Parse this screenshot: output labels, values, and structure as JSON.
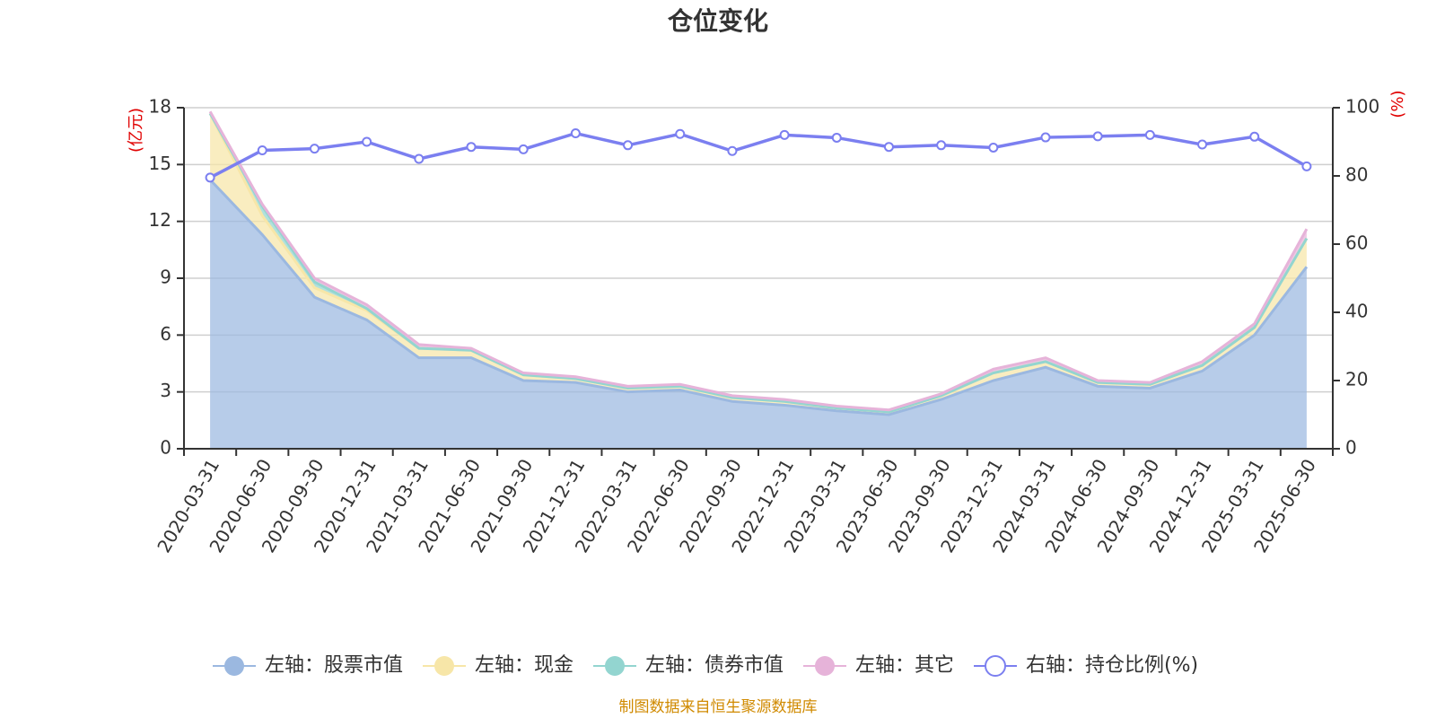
{
  "chart_data": {
    "type": "area",
    "title": "仓位变化",
    "categories": [
      "2020-03-31",
      "2020-06-30",
      "2020-09-30",
      "2020-12-31",
      "2021-03-31",
      "2021-06-30",
      "2021-09-30",
      "2021-12-31",
      "2022-03-31",
      "2022-06-30",
      "2022-09-30",
      "2022-12-31",
      "2023-03-31",
      "2023-06-30",
      "2023-09-30",
      "2023-12-31",
      "2024-03-31",
      "2024-06-30",
      "2024-09-30",
      "2024-12-31",
      "2025-03-31",
      "2025-06-30"
    ],
    "series": [
      {
        "name": "左轴：股票市值",
        "axis": "left",
        "stacked": true,
        "color": "#9bb8e0",
        "values": [
          14.2,
          11.3,
          8.0,
          6.8,
          4.8,
          4.8,
          3.6,
          3.5,
          3.0,
          3.1,
          2.5,
          2.3,
          2.0,
          1.8,
          2.6,
          3.6,
          4.3,
          3.3,
          3.2,
          4.1,
          6.0,
          9.6
        ]
      },
      {
        "name": "左轴：现金",
        "axis": "left",
        "stacked": true,
        "color": "#f7e6a8",
        "values": [
          3.5,
          1.0,
          0.5,
          0.5,
          0.5,
          0.4,
          0.3,
          0.2,
          0.2,
          0.2,
          0.2,
          0.2,
          0.15,
          0.15,
          0.2,
          0.4,
          0.3,
          0.2,
          0.2,
          0.3,
          0.4,
          1.5
        ]
      },
      {
        "name": "左轴：债券市值",
        "axis": "left",
        "stacked": true,
        "color": "#93d5d0",
        "values": [
          0.0,
          0.5,
          0.3,
          0.1,
          0.0,
          0.0,
          0.0,
          0.0,
          0.0,
          0.0,
          0.0,
          0.0,
          0.0,
          0.0,
          0.0,
          0.0,
          0.0,
          0.0,
          0.0,
          0.0,
          0.0,
          0.0
        ]
      },
      {
        "name": "左轴：其它",
        "axis": "left",
        "stacked": true,
        "color": "#e6b3d9",
        "values": [
          0.1,
          0.1,
          0.2,
          0.2,
          0.2,
          0.1,
          0.1,
          0.1,
          0.1,
          0.1,
          0.1,
          0.1,
          0.1,
          0.1,
          0.1,
          0.2,
          0.2,
          0.1,
          0.1,
          0.2,
          0.2,
          0.5
        ]
      },
      {
        "name": "右轴：持仓比例(%)",
        "axis": "right",
        "type": "line",
        "color": "#7b7ff0",
        "values": [
          79.5,
          87.5,
          88.0,
          90.0,
          85.0,
          88.5,
          87.8,
          92.5,
          89.0,
          92.3,
          87.3,
          92.0,
          91.2,
          88.5,
          89.0,
          88.3,
          91.3,
          91.6,
          92.0,
          89.2,
          91.5,
          82.8
        ]
      }
    ],
    "left_axis": {
      "unit": "(亿元)",
      "ylim": [
        0,
        18
      ],
      "ticks": [
        "0",
        "3",
        "6",
        "9",
        "12",
        "15",
        "18"
      ]
    },
    "right_axis": {
      "unit": "(%)",
      "ylim": [
        0,
        100
      ],
      "ticks": [
        "0",
        "20",
        "40",
        "60",
        "80",
        "100"
      ]
    },
    "grid": true,
    "legend_position": "bottom-center",
    "source": "制图数据来自恒生聚源数据库"
  }
}
